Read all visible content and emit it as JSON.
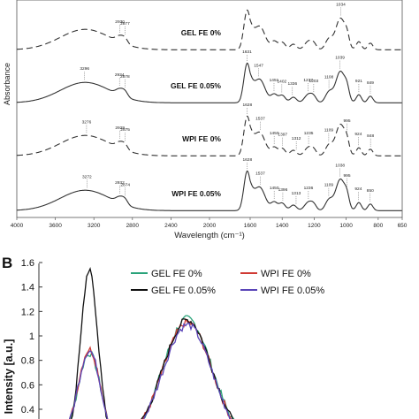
{
  "panelA": {
    "type": "line",
    "ylabel": "Absorbance",
    "xlabel": "Wavelength (cm⁻¹)",
    "xlim": [
      4000,
      650
    ],
    "x_ticks": [
      "4000",
      "3600",
      "3200",
      "2800",
      "2400",
      "2000",
      "1600",
      "1400",
      "1200",
      "1000",
      "800",
      "650"
    ],
    "x_tick_values": [
      4000,
      3600,
      3200,
      2800,
      2400,
      2000,
      1600,
      1400,
      1200,
      1000,
      800,
      650
    ],
    "spectra": [
      {
        "name": "GEL FE 0%",
        "style": "dashed",
        "color": "#333333",
        "offset": 0.0,
        "labels": [
          {
            "x": 2930,
            "text": "2930"
          },
          {
            "x": 2877,
            "text": "2877"
          },
          {
            "x": 1034,
            "text": "1034"
          }
        ]
      },
      {
        "name": "GEL FE 0.05%",
        "style": "solid",
        "color": "#333333",
        "offset": 1.0,
        "labels": [
          {
            "x": 3296,
            "text": "3296"
          },
          {
            "x": 2934,
            "text": "2934"
          },
          {
            "x": 2878,
            "text": "2878"
          },
          {
            "x": 1631,
            "text": "1631"
          },
          {
            "x": 1547,
            "text": "1547"
          },
          {
            "x": 1451,
            "text": "1451"
          },
          {
            "x": 1402,
            "text": "1402"
          },
          {
            "x": 1336,
            "text": "1336"
          },
          {
            "x": 1237,
            "text": "1237"
          },
          {
            "x": 1203,
            "text": "1203"
          },
          {
            "x": 1108,
            "text": "1108"
          },
          {
            "x": 1039,
            "text": "1039"
          },
          {
            "x": 921,
            "text": "921"
          },
          {
            "x": 849,
            "text": "849"
          }
        ]
      },
      {
        "name": "WPI FE 0%",
        "style": "dashed",
        "color": "#333333",
        "offset": 2.0,
        "labels": [
          {
            "x": 3276,
            "text": "3276"
          },
          {
            "x": 2929,
            "text": "2929"
          },
          {
            "x": 2875,
            "text": "2875"
          },
          {
            "x": 1628,
            "text": "1628"
          },
          {
            "x": 1537,
            "text": "1537"
          },
          {
            "x": 1450,
            "text": "1450"
          },
          {
            "x": 1397,
            "text": "1397"
          },
          {
            "x": 1312,
            "text": "1312"
          },
          {
            "x": 1235,
            "text": "1235"
          },
          {
            "x": 1109,
            "text": "1109"
          },
          {
            "x": 995,
            "text": "995"
          },
          {
            "x": 924,
            "text": "924"
          },
          {
            "x": 848,
            "text": "848"
          }
        ]
      },
      {
        "name": "WPI FE 0.05%",
        "style": "solid",
        "color": "#333333",
        "offset": 3.0,
        "labels": [
          {
            "x": 3272,
            "text": "3272"
          },
          {
            "x": 2932,
            "text": "2932"
          },
          {
            "x": 2874,
            "text": "2874"
          },
          {
            "x": 1628,
            "text": "1628"
          },
          {
            "x": 1537,
            "text": "1537"
          },
          {
            "x": 1450,
            "text": "1450"
          },
          {
            "x": 1396,
            "text": "1396"
          },
          {
            "x": 1313,
            "text": "1313"
          },
          {
            "x": 1236,
            "text": "1236"
          },
          {
            "x": 1109,
            "text": "1109"
          },
          {
            "x": 1038,
            "text": "1038"
          },
          {
            "x": 995,
            "text": "995"
          },
          {
            "x": 924,
            "text": "924"
          },
          {
            "x": 850,
            "text": "850"
          }
        ]
      }
    ]
  },
  "panelB": {
    "letter": "B",
    "type": "line",
    "ylabel": "Intensity [a.u.]",
    "ylim": [
      0.4,
      1.6
    ],
    "y_ticks": [
      "1.6",
      "1.4",
      "1.2",
      "1",
      "0.8",
      "0.6",
      "0.4"
    ],
    "y_tick_values": [
      1.6,
      1.4,
      1.2,
      1.0,
      0.8,
      0.6,
      0.4
    ],
    "legend_position": "top-right",
    "series": [
      {
        "name": "GEL FE 0%",
        "color": "#2aa37a",
        "peak1": 0.74,
        "peak2": 1.02
      },
      {
        "name": "WPI FE 0%",
        "color": "#d03a34",
        "peak1": 0.77,
        "peak2": 0.99
      },
      {
        "name": "GEL FE 0.05%",
        "color": "#111111",
        "peak1": 1.41,
        "peak2": 1.01
      },
      {
        "name": "WPI FE 0.05%",
        "color": "#5a45b8",
        "peak1": 0.76,
        "peak2": 0.97
      }
    ]
  }
}
